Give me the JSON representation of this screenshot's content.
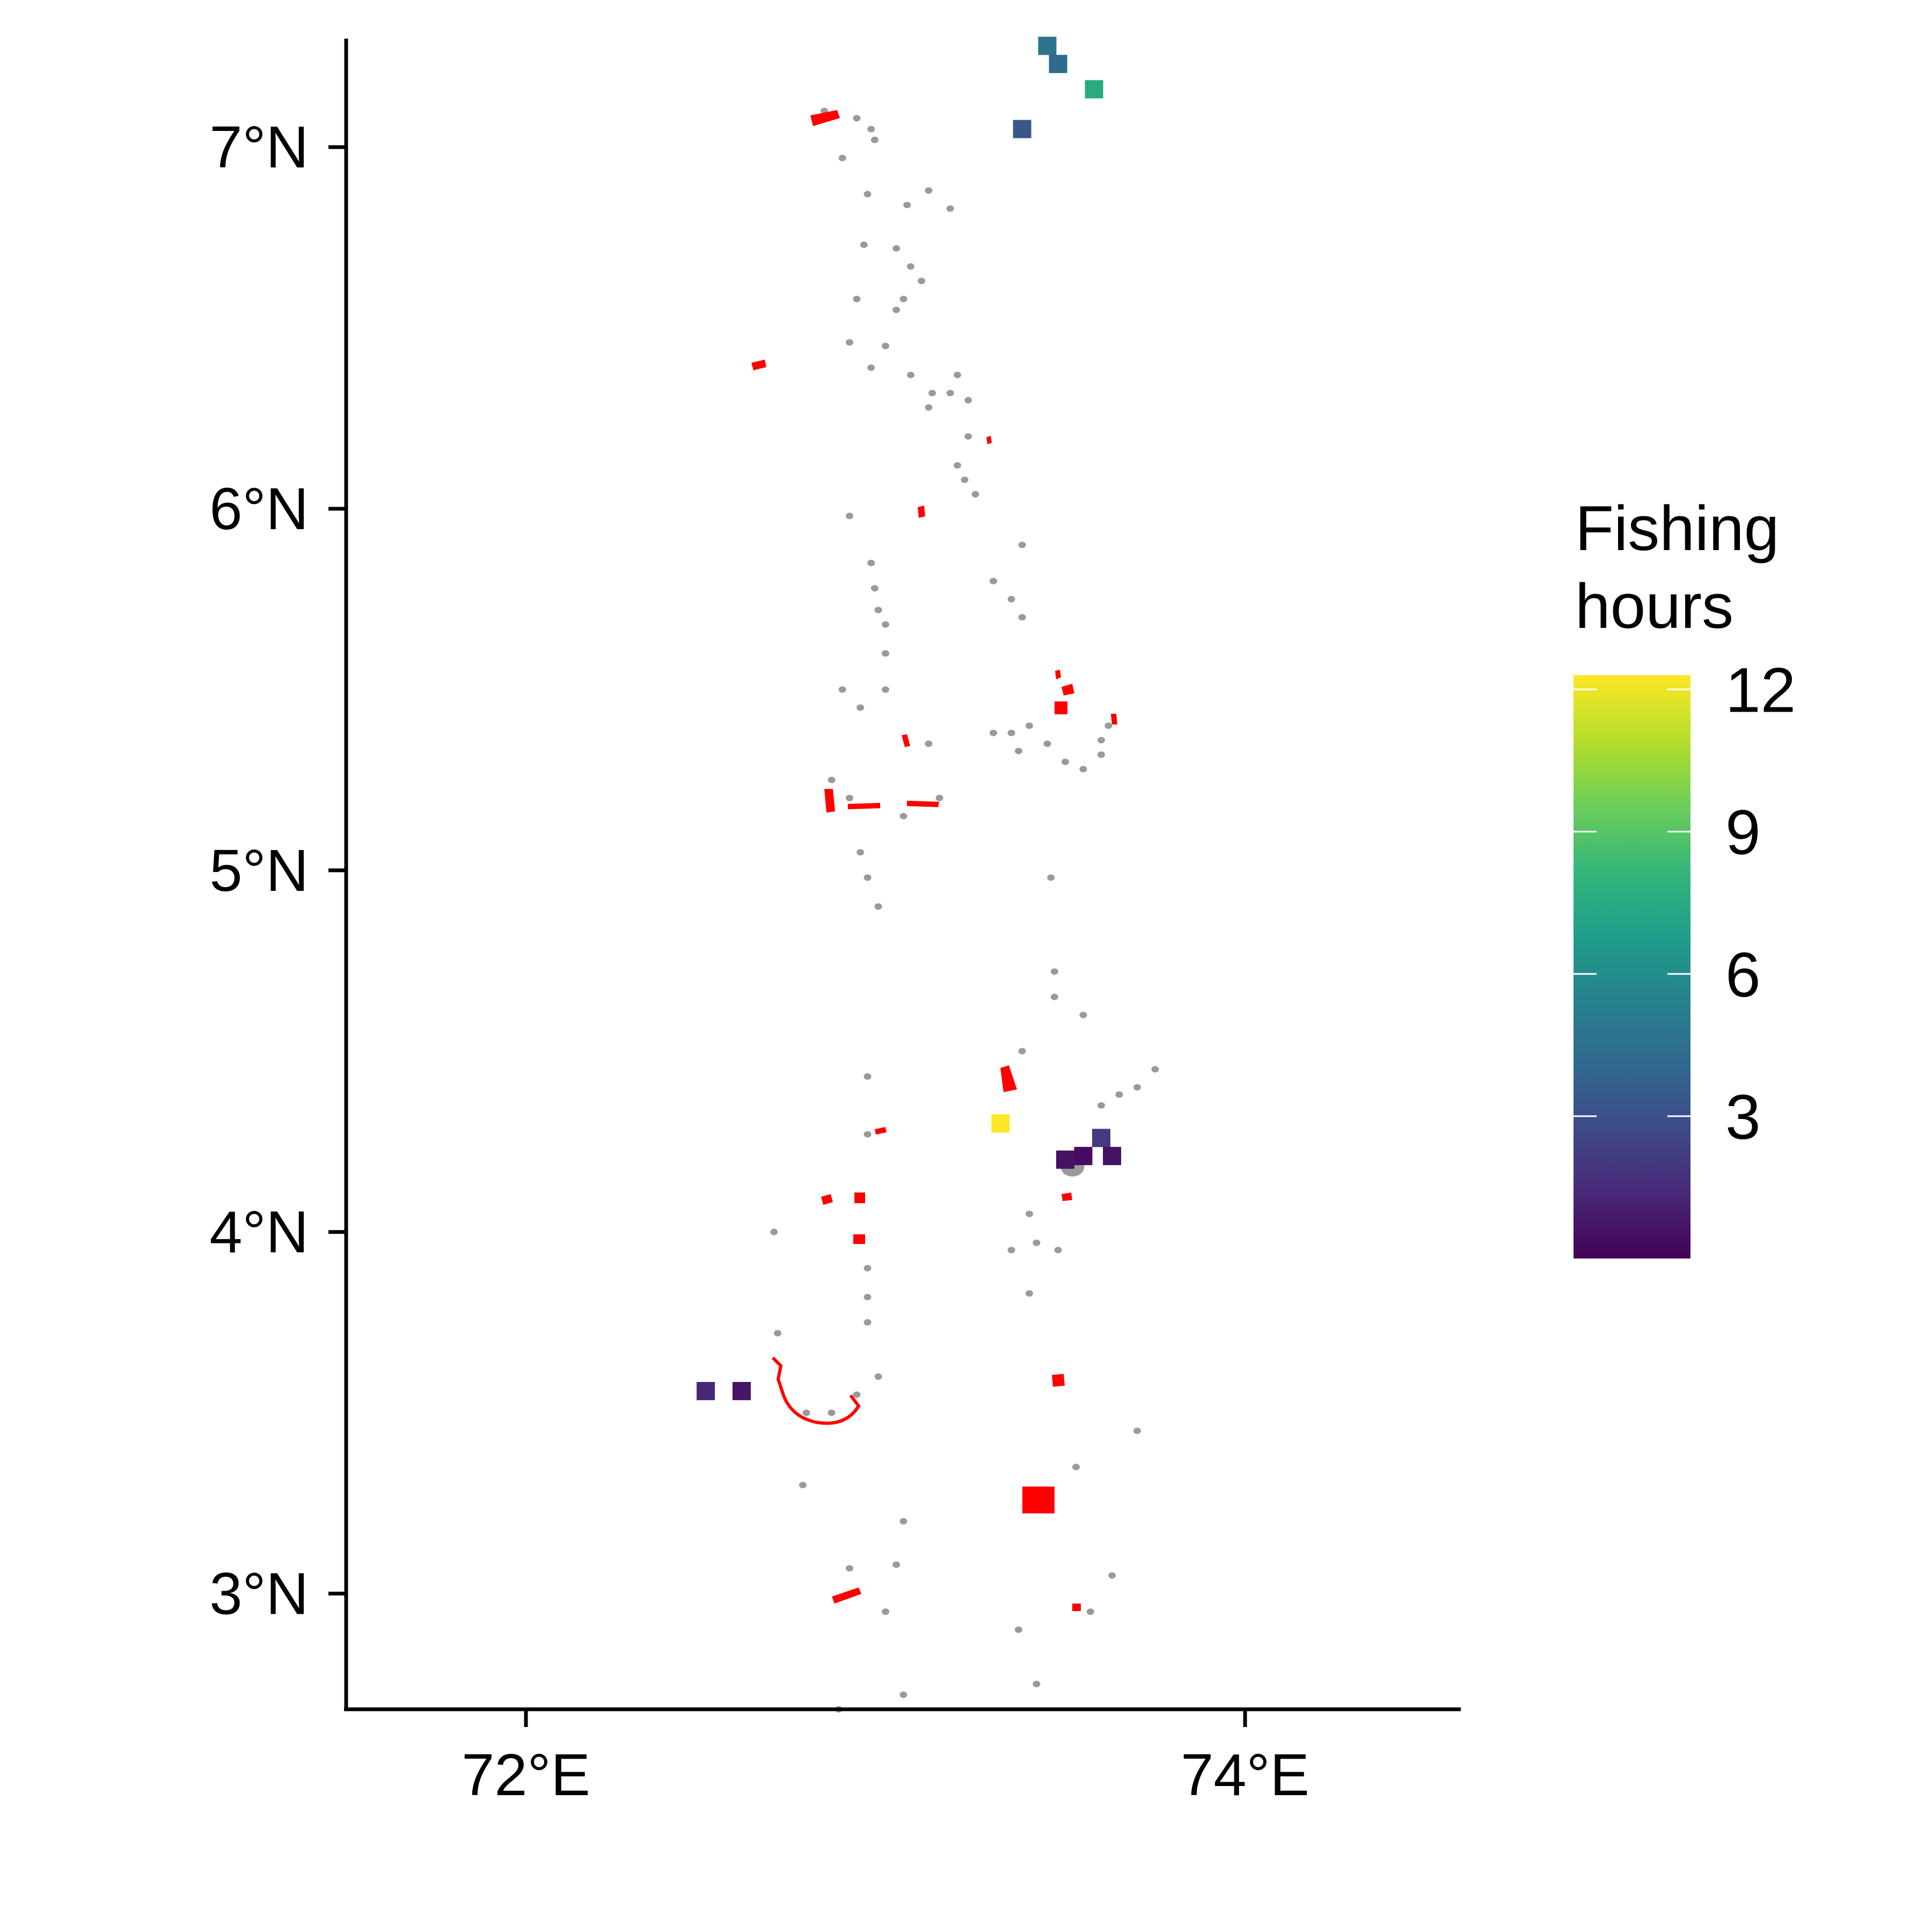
{
  "colors": {
    "land": "#9a9a9a",
    "protected_area": "#ff0000",
    "axis": "#000000"
  },
  "map": {
    "x_axis": {
      "min": 71.5,
      "max": 74.6,
      "ticks": [
        {
          "value": 72,
          "label": "72°E"
        },
        {
          "value": 74,
          "label": "74°E"
        }
      ]
    },
    "y_axis": {
      "min": 2.68,
      "max": 7.3,
      "ticks": [
        {
          "value": 7,
          "label": "7°N"
        },
        {
          "value": 6,
          "label": "6°N"
        },
        {
          "value": 5,
          "label": "5°N"
        },
        {
          "value": 4,
          "label": "4°N"
        },
        {
          "value": 3,
          "label": "3°N"
        }
      ]
    },
    "islands": [
      [
        72.83,
        7.1
      ],
      [
        72.92,
        7.08
      ],
      [
        72.96,
        7.05
      ],
      [
        72.97,
        7.02
      ],
      [
        72.88,
        6.97
      ],
      [
        72.95,
        6.87
      ],
      [
        73.12,
        6.88
      ],
      [
        73.06,
        6.84
      ],
      [
        73.18,
        6.83
      ],
      [
        72.94,
        6.73
      ],
      [
        73.03,
        6.72
      ],
      [
        73.07,
        6.67
      ],
      [
        73.1,
        6.63
      ],
      [
        73.05,
        6.58
      ],
      [
        72.92,
        6.58
      ],
      [
        73.03,
        6.55
      ],
      [
        72.9,
        6.46
      ],
      [
        73.0,
        6.45
      ],
      [
        72.96,
        6.39
      ],
      [
        73.07,
        6.37
      ],
      [
        73.2,
        6.37
      ],
      [
        73.13,
        6.32
      ],
      [
        73.18,
        6.32
      ],
      [
        73.23,
        6.3
      ],
      [
        73.12,
        6.28
      ],
      [
        73.23,
        6.2
      ],
      [
        73.2,
        6.12
      ],
      [
        73.22,
        6.08
      ],
      [
        73.25,
        6.04
      ],
      [
        72.9,
        5.98
      ],
      [
        72.96,
        5.85
      ],
      [
        72.97,
        5.78
      ],
      [
        72.98,
        5.72
      ],
      [
        73.0,
        5.68
      ],
      [
        73.0,
        5.6
      ],
      [
        73.3,
        5.8
      ],
      [
        73.35,
        5.75
      ],
      [
        73.38,
        5.9
      ],
      [
        73.38,
        5.7
      ],
      [
        72.88,
        5.5
      ],
      [
        72.93,
        5.45
      ],
      [
        73.0,
        5.5
      ],
      [
        73.12,
        5.35
      ],
      [
        73.3,
        5.38
      ],
      [
        73.35,
        5.38
      ],
      [
        73.37,
        5.33
      ],
      [
        73.4,
        5.4
      ],
      [
        73.45,
        5.35
      ],
      [
        73.5,
        5.3
      ],
      [
        73.6,
        5.36
      ],
      [
        73.62,
        5.4
      ],
      [
        73.6,
        5.32
      ],
      [
        73.55,
        5.28
      ],
      [
        72.85,
        5.25
      ],
      [
        72.9,
        5.2
      ],
      [
        73.05,
        5.15
      ],
      [
        73.15,
        5.2
      ],
      [
        72.93,
        5.05
      ],
      [
        72.95,
        4.98
      ],
      [
        72.98,
        4.9
      ],
      [
        73.46,
        4.98
      ],
      [
        73.47,
        4.72
      ],
      [
        73.47,
        4.65
      ],
      [
        73.55,
        4.6
      ],
      [
        73.38,
        4.5
      ],
      [
        73.35,
        4.4
      ],
      [
        73.65,
        4.38
      ],
      [
        73.7,
        4.4
      ],
      [
        73.75,
        4.45
      ],
      [
        73.6,
        4.35
      ],
      [
        72.95,
        4.43
      ],
      [
        72.95,
        4.27
      ],
      [
        73.4,
        4.05
      ],
      [
        73.42,
        3.97
      ],
      [
        73.48,
        3.95
      ],
      [
        73.4,
        3.83
      ],
      [
        73.35,
        3.95
      ],
      [
        72.95,
        3.9
      ],
      [
        72.95,
        3.82
      ],
      [
        72.95,
        3.75
      ],
      [
        72.98,
        3.6
      ],
      [
        72.92,
        3.55
      ],
      [
        72.85,
        3.5
      ],
      [
        72.78,
        3.5
      ],
      [
        72.7,
        3.72
      ],
      [
        72.69,
        4.0
      ],
      [
        72.77,
        3.3
      ],
      [
        73.05,
        3.2
      ],
      [
        73.7,
        3.45
      ],
      [
        73.53,
        3.35
      ],
      [
        73.63,
        3.05
      ],
      [
        73.03,
        3.08
      ],
      [
        72.9,
        3.07
      ],
      [
        73.0,
        2.95
      ],
      [
        73.57,
        2.95
      ],
      [
        73.37,
        2.9
      ],
      [
        73.42,
        2.75
      ],
      [
        73.05,
        2.72
      ],
      [
        72.87,
        2.68
      ]
    ],
    "fishing_cells": [
      {
        "lon": 73.45,
        "lat": 7.28,
        "hours": 4.7
      },
      {
        "lon": 73.48,
        "lat": 7.23,
        "hours": 4.2
      },
      {
        "lon": 73.58,
        "lat": 7.16,
        "hours": 7.5
      },
      {
        "lon": 73.38,
        "lat": 7.05,
        "hours": 3.4
      },
      {
        "lon": 73.32,
        "lat": 4.3,
        "hours": 12.3
      },
      {
        "lon": 73.6,
        "lat": 4.26,
        "hours": 2.1
      },
      {
        "lon": 73.5,
        "lat": 4.2,
        "hours": 0.6
      },
      {
        "lon": 73.55,
        "lat": 4.21,
        "hours": 0.4
      },
      {
        "lon": 73.63,
        "lat": 4.21,
        "hours": 0.6
      },
      {
        "lon": 72.5,
        "lat": 3.56,
        "hours": 1.4
      },
      {
        "lon": 72.6,
        "lat": 3.56,
        "hours": 0.7
      }
    ],
    "legend": {
      "title_line1": "Fishing",
      "title_line2": "hours",
      "min": 0,
      "max": 12.3,
      "ticks": [
        {
          "value": 3,
          "label": "3"
        },
        {
          "value": 6,
          "label": "6"
        },
        {
          "value": 9,
          "label": "9"
        },
        {
          "value": 12,
          "label": "12"
        }
      ],
      "palette": [
        "#440154",
        "#482878",
        "#3e4989",
        "#31688e",
        "#26828e",
        "#1f9e89",
        "#35b779",
        "#6ece58",
        "#b5de2b",
        "#fde725"
      ]
    }
  }
}
